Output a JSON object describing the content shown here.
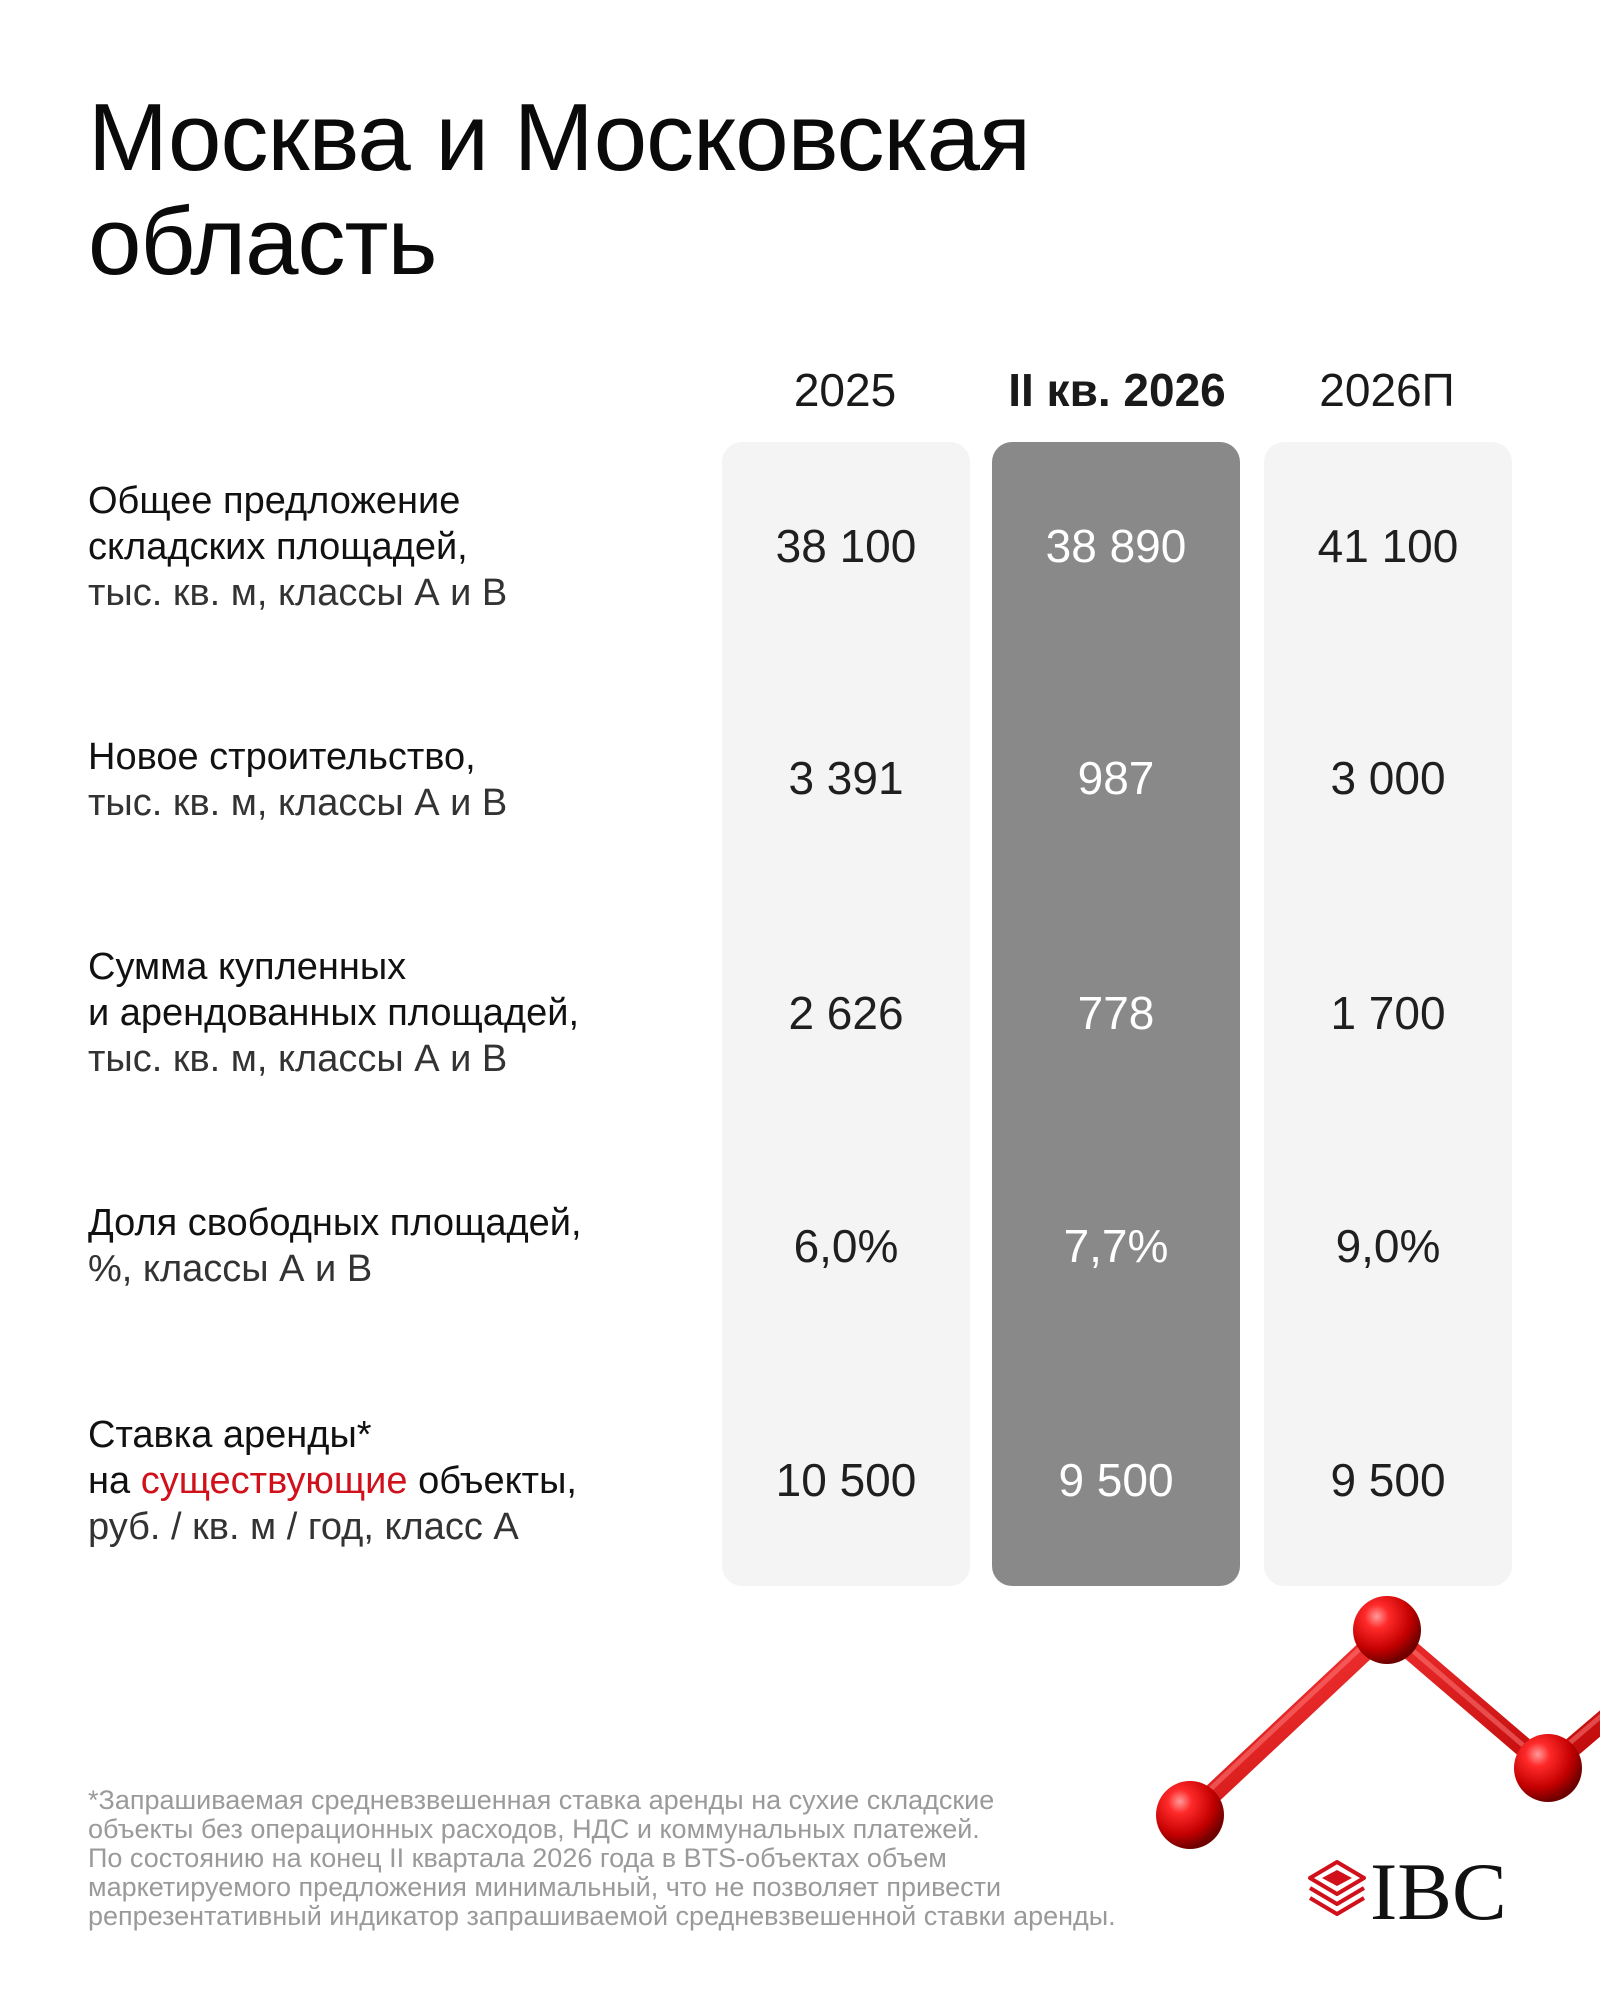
{
  "title": {
    "line1": "Москва и Московская",
    "line2": "область"
  },
  "columns": [
    {
      "label": "2025",
      "highlight": false
    },
    {
      "label": "II кв. 2026",
      "highlight": true
    },
    {
      "label": "2026П",
      "highlight": false
    }
  ],
  "rows": [
    {
      "label_lines": [
        "Общее предложение",
        "складских площадей,"
      ],
      "unit": "тыс. кв. м, классы А и В",
      "values": [
        "38 100",
        "38 890",
        "41 100"
      ]
    },
    {
      "label_lines": [
        "Новое строительство,"
      ],
      "unit": "тыс. кв. м, классы А и В",
      "values": [
        "3 391",
        "987",
        "3 000"
      ]
    },
    {
      "label_lines": [
        "Сумма купленных",
        "и арендованных площадей,"
      ],
      "unit": "тыс. кв. м, классы А и В",
      "values": [
        "2 626",
        "778",
        "1 700"
      ]
    },
    {
      "label_lines": [
        "Доля свободных площадей,"
      ],
      "unit": "%, классы А и В",
      "values": [
        "6,0%",
        "7,7%",
        "9,0%"
      ]
    },
    {
      "label_lines": [
        "Ставка аренды*"
      ],
      "label_rich": {
        "prefix": "на ",
        "accent": "существующие",
        "suffix": " объекты,"
      },
      "unit": "руб. / кв. м / год, класс А",
      "values": [
        "10 500",
        "9 500",
        "9 500"
      ]
    }
  ],
  "footnote": [
    "*Запрашиваемая средневзвешенная ставка аренды на сухие складские",
    "объекты без операционных расходов, НДС и коммунальных платежей.",
    "По состоянию на конец II квартала 2026 года в BTS-объектах объем",
    "маркетируемого предложения минимальный, что не позволяет привести",
    "репрезентативный индикатор запрашиваемой средневзвешенной ставки аренды."
  ],
  "brand": {
    "logo_text": "IBC",
    "logo_icon": "stacked-layers-icon",
    "decoration": "red-line-chart-icon"
  },
  "colors": {
    "accent": "#d0101a",
    "highlight_column": "#898989",
    "light_column": "#f4f4f4",
    "footnote": "#9a9a9a"
  }
}
